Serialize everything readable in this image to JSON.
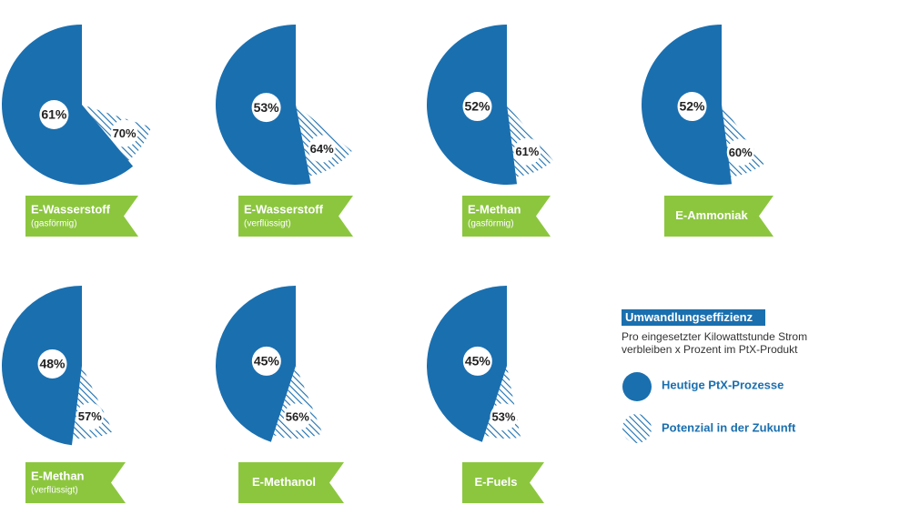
{
  "chart_data": [
    {
      "type": "pie",
      "title": "E-Wasserstoff",
      "subtitle": "(gasförmig)",
      "series": [
        {
          "name": "Heutige PtX-Prozesse",
          "color": "#1a6faf",
          "values": [
            61
          ],
          "value_labels": [
            "61%"
          ]
        },
        {
          "name": "Potenzial in der Zukunft",
          "color": "#1a6faf",
          "values": [
            70
          ],
          "value_labels": [
            "70%"
          ]
        }
      ]
    },
    {
      "type": "pie",
      "title": "E-Wasserstoff",
      "subtitle": "(verflüssigt)",
      "series": [
        {
          "name": "Heutige PtX-Prozesse",
          "color": "#1a6faf",
          "values": [
            53
          ],
          "value_labels": [
            "53%"
          ]
        },
        {
          "name": "Potenzial in der Zukunft",
          "color": "#1a6faf",
          "values": [
            64
          ],
          "value_labels": [
            "64%"
          ]
        }
      ]
    },
    {
      "type": "pie",
      "title": "E-Methan",
      "subtitle": "(gasförmig)",
      "series": [
        {
          "name": "Heutige PtX-Prozesse",
          "color": "#1a6faf",
          "values": [
            52
          ],
          "value_labels": [
            "52%"
          ]
        },
        {
          "name": "Potenzial in der Zukunft",
          "color": "#1a6faf",
          "values": [
            61
          ],
          "value_labels": [
            "61%"
          ]
        }
      ]
    },
    {
      "type": "pie",
      "title": "E-Ammoniak",
      "series": [
        {
          "name": "Heutige PtX-Prozesse",
          "color": "#1a6faf",
          "values": [
            52
          ],
          "value_labels": [
            "52%"
          ]
        },
        {
          "name": "Potenzial in der Zukunft",
          "color": "#1a6faf",
          "values": [
            60
          ],
          "value_labels": [
            "60%"
          ]
        }
      ]
    },
    {
      "type": "pie",
      "title": "E-Methan",
      "subtitle": "(verflüssigt)",
      "series": [
        {
          "name": "Heutige PtX-Prozesse",
          "color": "#1a6faf",
          "values": [
            48
          ],
          "value_labels": [
            "48%"
          ]
        },
        {
          "name": "Potenzial in der Zukunft",
          "color": "#1a6faf",
          "values": [
            57
          ],
          "value_labels": [
            "57%"
          ]
        }
      ]
    },
    {
      "type": "pie",
      "title": "E-Methanol",
      "series": [
        {
          "name": "Heutige PtX-Prozesse",
          "color": "#1a6faf",
          "values": [
            45
          ],
          "value_labels": [
            "45%"
          ]
        },
        {
          "name": "Potenzial in der Zukunft",
          "color": "#1a6faf",
          "values": [
            56
          ],
          "value_labels": [
            "56%"
          ]
        }
      ]
    },
    {
      "type": "pie",
      "title": "E-Fuels",
      "series": [
        {
          "name": "Heutige PtX-Prozesse",
          "color": "#1a6faf",
          "values": [
            45
          ],
          "value_labels": [
            "45%"
          ]
        },
        {
          "name": "Potenzial in der Zukunft",
          "color": "#1a6faf",
          "values": [
            53
          ],
          "value_labels": [
            "53%"
          ]
        }
      ]
    }
  ],
  "legend": {
    "title": "Umwandlungseffizienz",
    "lines": [
      "Pro eingesetzter Kilowattstunde Strom",
      "verbleiben x Prozent im PtX-Produkt"
    ]
  }
}
